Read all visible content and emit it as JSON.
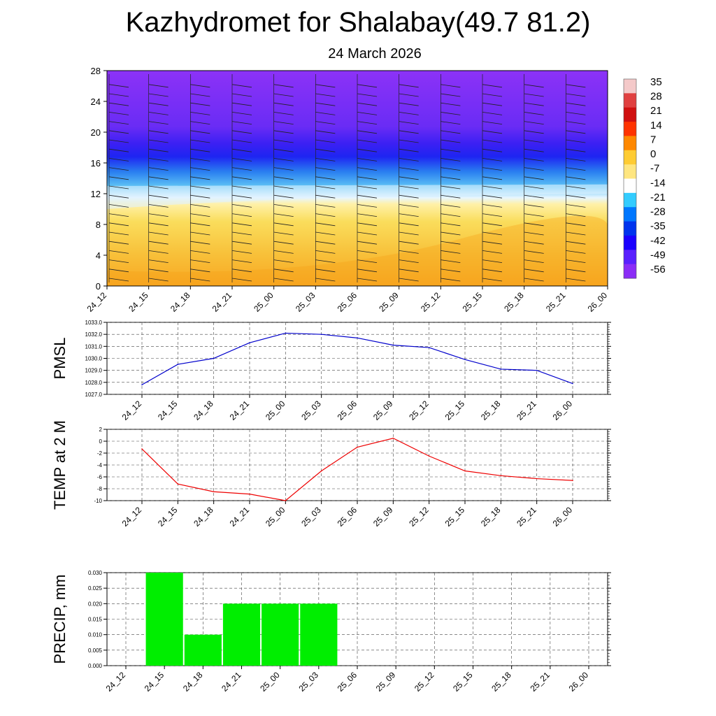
{
  "title": "Kazhydromet for Shalabay(49.7 81.2)",
  "subtitle": "24 March 2026",
  "time_labels": [
    "24_12",
    "24_15",
    "24_18",
    "24_21",
    "25_00",
    "25_03",
    "25_06",
    "25_09",
    "25_12",
    "25_15",
    "25_18",
    "25_21",
    "26_00"
  ],
  "colors": {
    "pmsl_line": "#0000cc",
    "temp_line": "#ee0000",
    "precip_bar": "#00ee00",
    "grid": "#444444"
  },
  "chart_data": [
    {
      "type": "heatmap",
      "name": "temperature-cross-section",
      "x_categories": [
        "24_12",
        "24_15",
        "24_18",
        "24_21",
        "25_00",
        "25_03",
        "25_06",
        "25_09",
        "25_12",
        "25_15",
        "25_18",
        "25_21",
        "26_00"
      ],
      "y_ticks": [
        0,
        4,
        8,
        12,
        16,
        20,
        24,
        28
      ],
      "ylim": [
        0,
        28
      ],
      "colorbar": {
        "labels": [
          "35",
          "28",
          "21",
          "14",
          "7",
          "0",
          "-7",
          "-14",
          "-21",
          "-28",
          "-35",
          "-42",
          "-49",
          "-56"
        ],
        "colors": [
          "#f4c9c9",
          "#e04040",
          "#d01010",
          "#ff3300",
          "#ff8800",
          "#ffcc33",
          "#ffe680",
          "#ffffff",
          "#33ccff",
          "#0077ff",
          "#0033ee",
          "#1a00ff",
          "#5a20ff",
          "#8b2cf7"
        ]
      },
      "description_levels": {
        "warm_top_height": 11,
        "cold_core_height": 17
      }
    },
    {
      "type": "line",
      "name": "pmsl",
      "ylabel": "PMSL",
      "categories": [
        "24_12",
        "24_15",
        "24_18",
        "24_21",
        "25_00",
        "25_03",
        "25_06",
        "25_09",
        "25_12",
        "25_15",
        "25_18",
        "25_21",
        "26_00"
      ],
      "values": [
        1027.8,
        1029.5,
        1030.0,
        1031.3,
        1032.1,
        1032.0,
        1031.7,
        1031.1,
        1030.9,
        1029.9,
        1029.1,
        1029.0,
        1027.9
      ],
      "ylim": [
        1027.0,
        1033.0
      ],
      "y_ticks": [
        "1027.0",
        "1028.0",
        "1029.0",
        "1030.0",
        "1031.0",
        "1032.0",
        "1033.0"
      ]
    },
    {
      "type": "line",
      "name": "temp",
      "ylabel": "TEMP at 2 M",
      "categories": [
        "24_12",
        "24_15",
        "24_18",
        "24_21",
        "25_00",
        "25_03",
        "25_06",
        "25_09",
        "25_12",
        "25_15",
        "25_18",
        "25_21",
        "26_00"
      ],
      "values": [
        -1.3,
        -7.2,
        -8.5,
        -8.9,
        -10.0,
        -5.0,
        -1.0,
        0.5,
        -2.5,
        -5.0,
        -5.8,
        -6.3,
        -6.6
      ],
      "ylim": [
        -10,
        2
      ],
      "y_ticks": [
        "-10",
        "-8",
        "-6",
        "-4",
        "-2",
        "0",
        "2"
      ]
    },
    {
      "type": "bar",
      "name": "precip",
      "ylabel": "PRECIP, mm",
      "categories": [
        "24_12",
        "24_15",
        "24_18",
        "24_21",
        "25_00",
        "25_03",
        "25_06",
        "25_09",
        "25_12",
        "25_15",
        "25_18",
        "25_21",
        "26_00"
      ],
      "values": [
        0,
        0.03,
        0.01,
        0.02,
        0.02,
        0.02,
        0,
        0,
        0,
        0,
        0,
        0,
        0
      ],
      "ylim": [
        0,
        0.03
      ],
      "y_ticks": [
        "0.000",
        "0.005",
        "0.010",
        "0.015",
        "0.020",
        "0.025",
        "0.030"
      ]
    }
  ]
}
